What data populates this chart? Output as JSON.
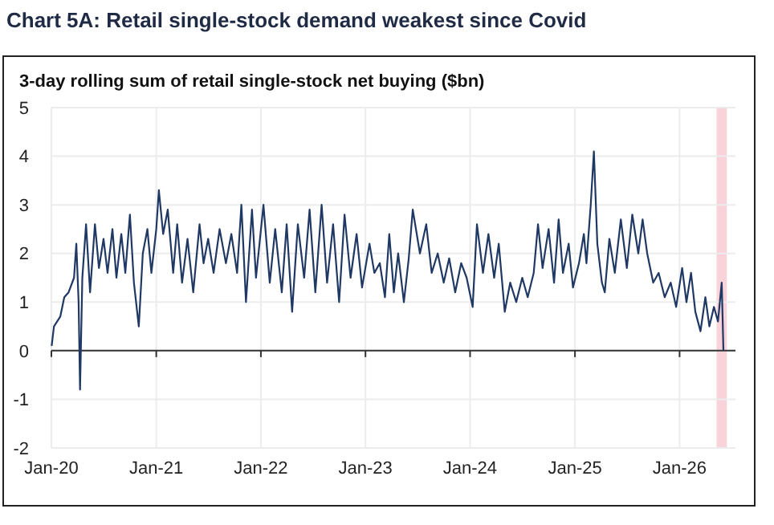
{
  "chart_data": {
    "type": "line",
    "title": "Chart 5A: Retail single-stock demand weakest since Covid",
    "subtitle": "3-day rolling sum of retail single-stock net buying ($bn)",
    "x": [
      "2020-01-02",
      "2020-01-10",
      "2020-02-01",
      "2020-02-15",
      "2020-03-01",
      "2020-03-20",
      "2020-03-28",
      "2020-04-05",
      "2020-04-10",
      "2020-04-18",
      "2020-05-01",
      "2020-05-15",
      "2020-06-01",
      "2020-06-15",
      "2020-07-01",
      "2020-07-15",
      "2020-08-01",
      "2020-08-15",
      "2020-09-01",
      "2020-09-15",
      "2020-10-01",
      "2020-10-15",
      "2020-11-01",
      "2020-11-15",
      "2020-12-01",
      "2020-12-15",
      "2021-01-01",
      "2021-01-10",
      "2021-01-25",
      "2021-02-10",
      "2021-03-01",
      "2021-03-15",
      "2021-04-01",
      "2021-04-20",
      "2021-05-10",
      "2021-06-01",
      "2021-06-15",
      "2021-07-01",
      "2021-07-20",
      "2021-08-10",
      "2021-09-01",
      "2021-09-20",
      "2021-10-10",
      "2021-10-25",
      "2021-11-10",
      "2021-12-01",
      "2021-12-15",
      "2022-01-10",
      "2022-02-01",
      "2022-02-20",
      "2022-03-15",
      "2022-04-01",
      "2022-04-20",
      "2022-05-10",
      "2022-06-01",
      "2022-06-20",
      "2022-07-10",
      "2022-08-01",
      "2022-08-20",
      "2022-09-10",
      "2022-10-01",
      "2022-10-20",
      "2022-11-10",
      "2022-12-01",
      "2022-12-20",
      "2023-01-15",
      "2023-02-01",
      "2023-02-20",
      "2023-03-10",
      "2023-03-25",
      "2023-04-10",
      "2023-04-25",
      "2023-05-15",
      "2023-06-01",
      "2023-06-15",
      "2023-07-10",
      "2023-08-01",
      "2023-08-20",
      "2023-09-10",
      "2023-10-01",
      "2023-10-20",
      "2023-11-10",
      "2023-12-01",
      "2023-12-20",
      "2024-01-10",
      "2024-01-25",
      "2024-02-15",
      "2024-03-05",
      "2024-03-25",
      "2024-04-10",
      "2024-05-01",
      "2024-05-20",
      "2024-06-10",
      "2024-07-01",
      "2024-07-20",
      "2024-08-10",
      "2024-08-25",
      "2024-09-10",
      "2024-10-01",
      "2024-10-20",
      "2024-11-05",
      "2024-11-20",
      "2024-12-10",
      "2024-12-25",
      "2025-01-15",
      "2025-02-01",
      "2025-02-10",
      "2025-02-25",
      "2025-03-08",
      "2025-03-20",
      "2025-04-05",
      "2025-04-15",
      "2025-05-01",
      "2025-05-20",
      "2025-06-10",
      "2025-07-01",
      "2025-07-20",
      "2025-08-10",
      "2025-08-25",
      "2025-09-10",
      "2025-10-01",
      "2025-10-20",
      "2025-11-10",
      "2025-12-01",
      "2025-12-20",
      "2026-01-10",
      "2026-01-25",
      "2026-02-10",
      "2026-02-25",
      "2026-03-15",
      "2026-04-01",
      "2026-04-15",
      "2026-05-01",
      "2026-05-15",
      "2026-05-28",
      "2026-06-03"
    ],
    "series": [
      {
        "color": "#1f3864",
        "values": [
          0.1,
          0.5,
          0.7,
          1.1,
          1.2,
          1.5,
          2.2,
          1.0,
          -0.8,
          1.5,
          2.6,
          1.2,
          2.6,
          1.7,
          2.3,
          1.6,
          2.5,
          1.5,
          2.4,
          1.6,
          2.8,
          1.4,
          0.5,
          2.0,
          2.5,
          1.6,
          2.5,
          3.3,
          2.4,
          2.9,
          1.6,
          2.6,
          1.4,
          2.3,
          1.2,
          2.6,
          1.8,
          2.3,
          1.6,
          2.5,
          1.8,
          2.4,
          1.6,
          3.0,
          1.0,
          2.9,
          1.5,
          3.0,
          1.4,
          2.5,
          1.2,
          2.6,
          0.8,
          2.6,
          1.5,
          2.9,
          1.2,
          3.0,
          1.4,
          2.6,
          1.0,
          2.8,
          1.5,
          2.4,
          1.3,
          2.2,
          1.6,
          1.8,
          1.1,
          2.4,
          1.2,
          2.0,
          1.0,
          1.9,
          2.9,
          2.0,
          2.6,
          1.6,
          2.0,
          1.4,
          1.9,
          1.2,
          1.8,
          1.5,
          0.9,
          2.6,
          1.6,
          2.4,
          1.5,
          2.2,
          0.8,
          1.4,
          1.0,
          1.5,
          1.1,
          1.6,
          2.6,
          1.7,
          2.5,
          1.4,
          2.7,
          1.6,
          2.2,
          1.3,
          1.8,
          2.4,
          1.8,
          3.0,
          4.1,
          2.2,
          1.4,
          1.2,
          2.3,
          1.6,
          2.7,
          1.7,
          2.8,
          2.0,
          2.7,
          2.0,
          1.4,
          1.6,
          1.1,
          1.4,
          0.9,
          1.7,
          1.0,
          1.6,
          0.8,
          0.4,
          1.1,
          0.5,
          0.9,
          0.6,
          1.4,
          0.0
        ]
      }
    ],
    "xlim": [
      "2020-01-01",
      "2026-07-15"
    ],
    "xticks": [
      {
        "value": "2020-01",
        "label": "Jan-20"
      },
      {
        "value": "2021-01",
        "label": "Jan-21"
      },
      {
        "value": "2022-01",
        "label": "Jan-22"
      },
      {
        "value": "2023-01",
        "label": "Jan-23"
      },
      {
        "value": "2024-01",
        "label": "Jan-24"
      },
      {
        "value": "2025-01",
        "label": "Jan-25"
      },
      {
        "value": "2026-01",
        "label": "Jan-26"
      }
    ],
    "ylim": [
      -2,
      5
    ],
    "yticks": [
      -2,
      -1,
      0,
      1,
      2,
      3,
      4,
      5
    ],
    "bands": [
      {
        "axis": "x",
        "from": "2026-05-10",
        "to": "2026-06-15",
        "color": "#f9d3da"
      }
    ],
    "grid": true,
    "line_style": "solid"
  }
}
